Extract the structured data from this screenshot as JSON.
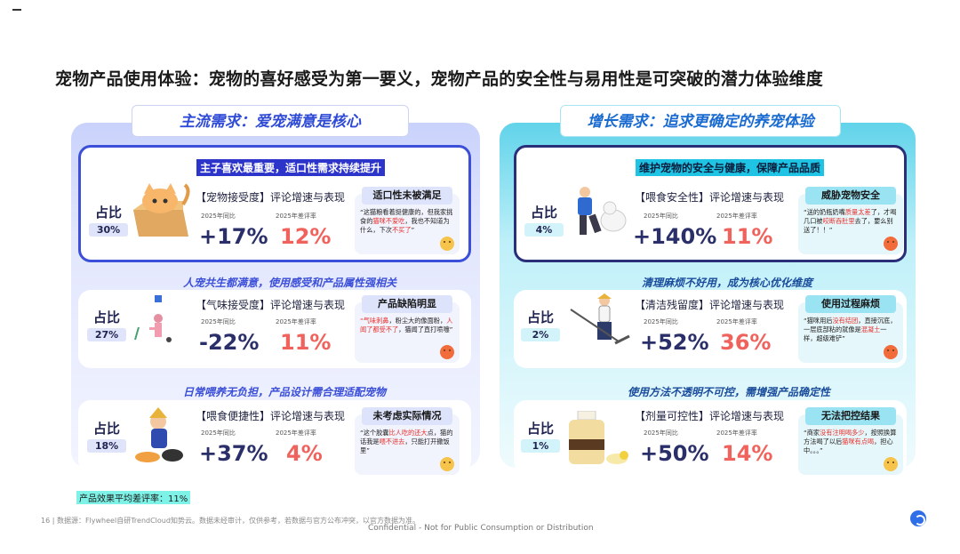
{
  "title": "宠物产品使用体验：宠物的喜好感受为第一要义，宠物产品的安全性与易用性是可突破的潜力体验维度",
  "left_panel": {
    "header": "主流需求：爱宠满意是核心",
    "rows": [
      {
        "heading": "主子喜欢最重要，适口性需求持续提升",
        "share_label": "占比",
        "share_value": "30%",
        "metric_title": "【宠物接受度】评论增速与表现",
        "yoy_label": "2025年同比",
        "neg_label": "2025年差评率",
        "yoy_value": "+17%",
        "neg_value": "12%",
        "tag": "适口性未被满足",
        "quote_a": "“这猫粮看着挺健康的，但我家挑食的",
        "quote_red": "猫咪不爱吃",
        "quote_b": "，我也不知道为什么，下次",
        "quote_red2": "不买了",
        "quote_c": "”",
        "emoji": "neutral-face-icon"
      },
      {
        "heading": "人宠共生都满意，使用感受和产品属性强相关",
        "share_label": "占比",
        "share_value": "27%",
        "metric_title": "【气味接受度】评论增速与表现",
        "yoy_label": "2025年同比",
        "neg_label": "2025年差评率",
        "yoy_value": "-22%",
        "neg_value": "11%",
        "tag": "产品缺陷明显",
        "quote_a": "",
        "quote_red": "“气味刺鼻",
        "quote_b": "，粉尘大的像面粉，",
        "quote_red2": "人闻了都受不了",
        "quote_c": "，猫闻了直打喷嚏”",
        "emoji": "angry-face-icon"
      },
      {
        "heading": "日常喂养无负担，产品设计需合理适配宠物",
        "share_label": "占比",
        "share_value": "18%",
        "metric_title": "【喂食便捷性】评论增速与表现",
        "yoy_label": "2025年同比",
        "neg_label": "2025年差评率",
        "yoy_value": "+37%",
        "neg_value": "4%",
        "tag": "未考虑实际情况",
        "quote_a": "“这个胶囊",
        "quote_red": "比人吃的还大",
        "quote_b": "点，猫的话我是",
        "quote_red2": "喂不进去",
        "quote_c": "，只能打开撒饭里”",
        "emoji": "neutral-face-icon"
      }
    ]
  },
  "right_panel": {
    "header": "增长需求：追求更确定的养宠体验",
    "rows": [
      {
        "heading": "维护宠物的安全与健康，保障产品品质",
        "share_label": "占比",
        "share_value": "4%",
        "metric_title": "【喂食安全性】评论增速与表现",
        "yoy_label": "2025年同比",
        "neg_label": "2025年差评率",
        "yoy_value": "+140%",
        "neg_value": "11%",
        "tag": "威胁宠物安全",
        "quote_a": "“送的奶瓶奶嘴",
        "quote_red": "质量太差",
        "quote_b": "了，才喝几口被",
        "quote_red2": "咬断吞肚里",
        "quote_c": "去了，要么别送了！！”",
        "emoji": "angry-face-icon"
      },
      {
        "heading": "清理麻烦不好用，成为核心优化维度",
        "share_label": "占比",
        "share_value": "2%",
        "metric_title": "【清洁残留度】评论增速与表现",
        "yoy_label": "2025年同比",
        "neg_label": "2025年差评率",
        "yoy_value": "+52%",
        "neg_value": "36%",
        "tag": "使用过程麻烦",
        "quote_a": "“猫咪用后",
        "quote_red": "没有结团",
        "quote_b": "，直接沉底，一层底部粘的就像是",
        "quote_red2": "混凝土",
        "quote_c": "一样，超级难铲”",
        "emoji": "angry-face-icon"
      },
      {
        "heading": "使用方法不透明不可控，需增强产品确定性",
        "share_label": "占比",
        "share_value": "1%",
        "metric_title": "【剂量可控性】评论增速与表现",
        "yoy_label": "2025年同比",
        "neg_label": "2025年差评率",
        "yoy_value": "+50%",
        "neg_value": "14%",
        "tag": "无法把控结果",
        "quote_a": "“商家",
        "quote_red": "没有注明喝多少",
        "quote_b": "，按照换算方法喝了以后",
        "quote_red2": "猫咪有点喝",
        "quote_c": "，担心中。。。”",
        "emoji": "neutral-face-icon"
      }
    ]
  },
  "footer": {
    "avg_neg": "产品效果平均差评率：11%",
    "source": "16 | 数据源：Flywheel自研TrendCloud知势云。数据未经审计，仅供参考，若数据与官方公布冲突，以官方数据为准。",
    "confidential": "Confidential - Not for Public Consumption or Distribution"
  },
  "colors": {
    "accent_blue": "#3b4fd8",
    "accent_cyan": "#1fc4e4",
    "negative_red": "#f0625c"
  }
}
